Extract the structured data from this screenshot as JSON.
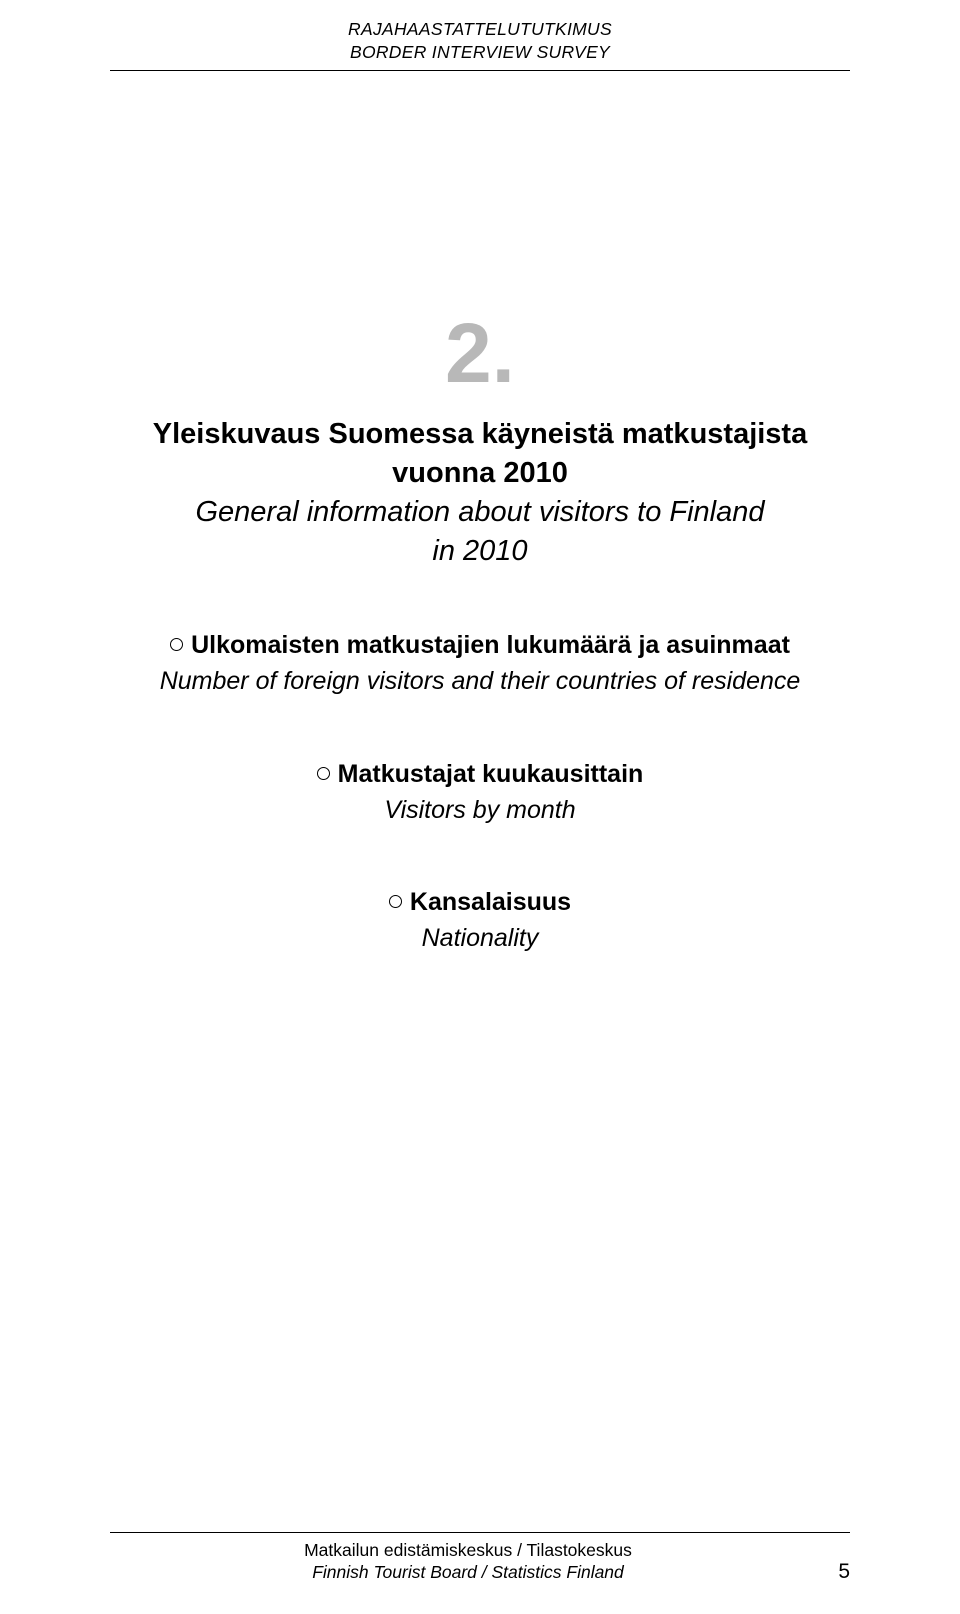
{
  "header": {
    "line1": "RAJAHAASTATTELUTUTKIMUS",
    "line2": "BORDER INTERVIEW SURVEY"
  },
  "chapter": {
    "number": "2.",
    "title_fi_line1": "Yleiskuvaus Suomessa käyneistä matkustajista",
    "title_fi_line2": "vuonna 2010",
    "title_en_line1": "General information about visitors to Finland",
    "title_en_line2": "in 2010"
  },
  "subsections": [
    {
      "fi": "Ulkomaisten matkustajien lukumäärä ja asuinmaat",
      "en": "Number of foreign visitors and their countries of residence"
    },
    {
      "fi": "Matkustajat kuukausittain",
      "en": "Visitors by month"
    },
    {
      "fi": "Kansalaisuus",
      "en": "Nationality"
    }
  ],
  "footer": {
    "org_fi": "Matkailun edistämiskeskus / Tilastokeskus",
    "org_en": "Finnish Tourist Board / Statistics Finland",
    "page_number": "5"
  },
  "colors": {
    "chapter_number": "#b8b8b8",
    "text": "#000000",
    "background": "#ffffff"
  }
}
